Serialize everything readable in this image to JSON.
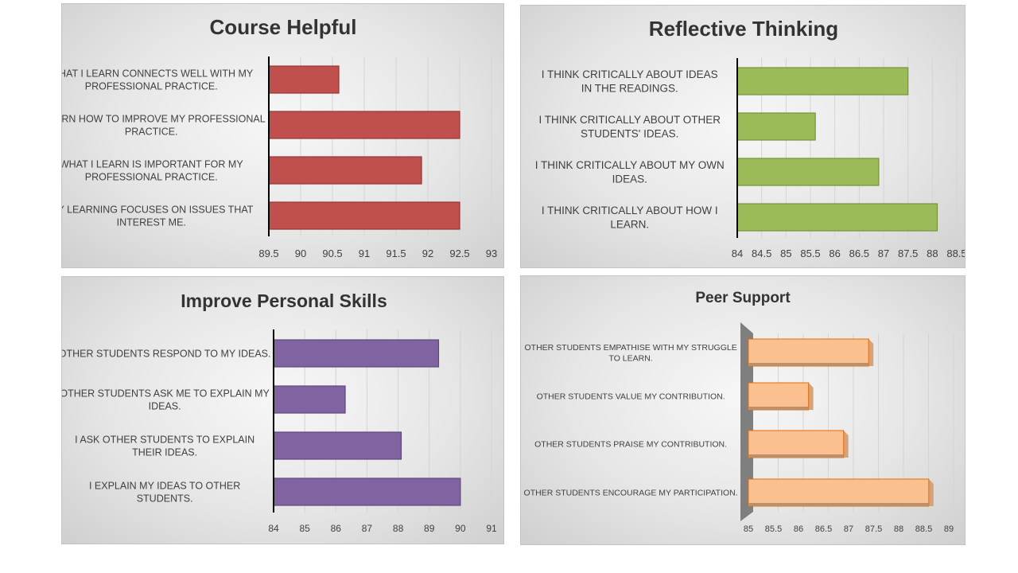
{
  "chart_data": [
    {
      "type": "bar",
      "orientation": "horizontal",
      "title": "Course Helpful",
      "categories": [
        "WHAT I LEARN CONNECTS WELL WITH MY PROFESSIONAL PRACTICE.",
        "I LEARN HOW TO IMPROVE MY PROFESSIONAL PRACTICE.",
        "WHAT I LEARN IS IMPORTANT FOR MY PROFESSIONAL PRACTICE.",
        "MY LEARNING FOCUSES ON ISSUES THAT INTEREST ME."
      ],
      "values": [
        90.6,
        92.5,
        91.9,
        92.5
      ],
      "xlim": [
        89.5,
        93
      ],
      "xticks": [
        "89.5",
        "90",
        "90.5",
        "91",
        "91.5",
        "92",
        "92.5",
        "93"
      ],
      "grid": true,
      "legend": "none",
      "color": "#c0504d",
      "edge_color": "#943634"
    },
    {
      "type": "bar",
      "orientation": "horizontal",
      "title": "Reflective Thinking",
      "categories": [
        "I THINK CRITICALLY ABOUT IDEAS IN THE READINGS.",
        "I THINK CRITICALLY ABOUT OTHER STUDENTS' IDEAS.",
        "I THINK CRITICALLY ABOUT MY OWN IDEAS.",
        "I THINK CRITICALLY ABOUT HOW I LEARN."
      ],
      "values": [
        87.5,
        85.6,
        86.9,
        88.1
      ],
      "xlim": [
        84,
        88.5
      ],
      "xticks": [
        "84",
        "84.5",
        "85",
        "85.5",
        "86",
        "86.5",
        "87",
        "87.5",
        "88",
        "88.5"
      ],
      "grid": true,
      "legend": "none",
      "color": "#9bbb59",
      "edge_color": "#76923c"
    },
    {
      "type": "bar",
      "orientation": "horizontal",
      "title": "Improve Personal Skills",
      "categories": [
        "OTHER STUDENTS RESPOND TO MY IDEAS.",
        "OTHER STUDENTS ASK ME TO EXPLAIN MY IDEAS.",
        "I ASK OTHER STUDENTS TO EXPLAIN THEIR IDEAS.",
        "I EXPLAIN MY IDEAS TO OTHER STUDENTS."
      ],
      "values": [
        89.3,
        86.3,
        88.1,
        90
      ],
      "xlim": [
        84,
        91
      ],
      "xticks": [
        "84",
        "85",
        "86",
        "87",
        "88",
        "89",
        "90",
        "91"
      ],
      "grid": true,
      "legend": "none",
      "color": "#8064a2",
      "edge_color": "#5f497a"
    },
    {
      "type": "bar",
      "orientation": "horizontal",
      "style": "3d",
      "title": "Peer Support",
      "categories": [
        "OTHER STUDENTS EMPATHISE WITH MY STRUGGLE TO LEARN.",
        "OTHER STUDENTS VALUE MY CONTRIBUTION.",
        "OTHER STUDENTS PRAISE MY CONTRIBUTION.",
        "OTHER STUDENTS ENCOURAGE MY PARTICIPATION."
      ],
      "values": [
        87.4,
        86.2,
        86.9,
        88.6
      ],
      "xlim": [
        85,
        89
      ],
      "xticks": [
        "85",
        "85.5",
        "86",
        "86.5",
        "87",
        "87.5",
        "88",
        "88.5",
        "89"
      ],
      "grid": true,
      "legend": "none",
      "color": "#fac090",
      "edge_color": "#e46c0a"
    }
  ]
}
